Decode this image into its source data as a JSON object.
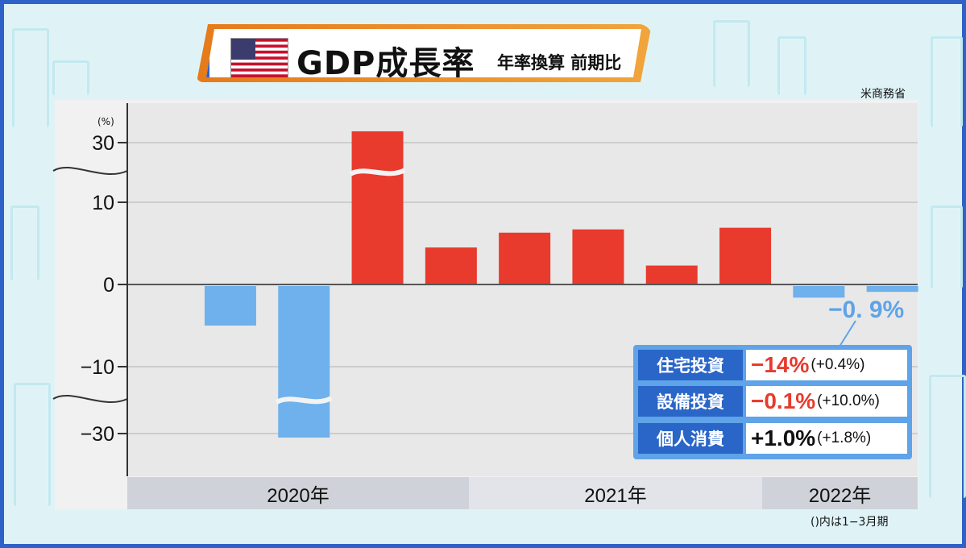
{
  "title": {
    "main": "GDP成長率",
    "sub": "年率換算 前期比",
    "flag": "us-flag-icon"
  },
  "source": "米商務省",
  "note": "()内は1−3月期",
  "chart_data": {
    "type": "bar",
    "title": "GDP成長率 年率換算 前期比",
    "ylabel": "(%)",
    "yticks": [
      "30",
      "10",
      "0",
      "−10",
      "−30"
    ],
    "axis_break": true,
    "years": [
      {
        "label": "2020年",
        "quarters": 4
      },
      {
        "label": "2021年",
        "quarters": 4
      },
      {
        "label": "2022年",
        "quarters": 2
      }
    ],
    "series": [
      {
        "values": [
          null,
          -5.0,
          -31.2,
          33.8,
          4.5,
          6.3,
          6.7,
          2.3,
          6.9,
          -1.6,
          -0.9
        ]
      }
    ],
    "colors": {
      "positive": "#e83a2d",
      "negative": "#6eb1ec"
    },
    "annotations": [
      {
        "text": "−0. 9%"
      }
    ]
  },
  "legend": [
    {
      "label": "住宅投資",
      "value": "−14%",
      "sub": "(+0.4%)",
      "color": "#e83a2d"
    },
    {
      "label": "設備投資",
      "value": "−0.1%",
      "sub": "(+10.0%)",
      "color": "#e83a2d"
    },
    {
      "label": "個人消費",
      "value": "+1.0%",
      "sub": "(+1.8%)",
      "color": "#111111"
    }
  ]
}
